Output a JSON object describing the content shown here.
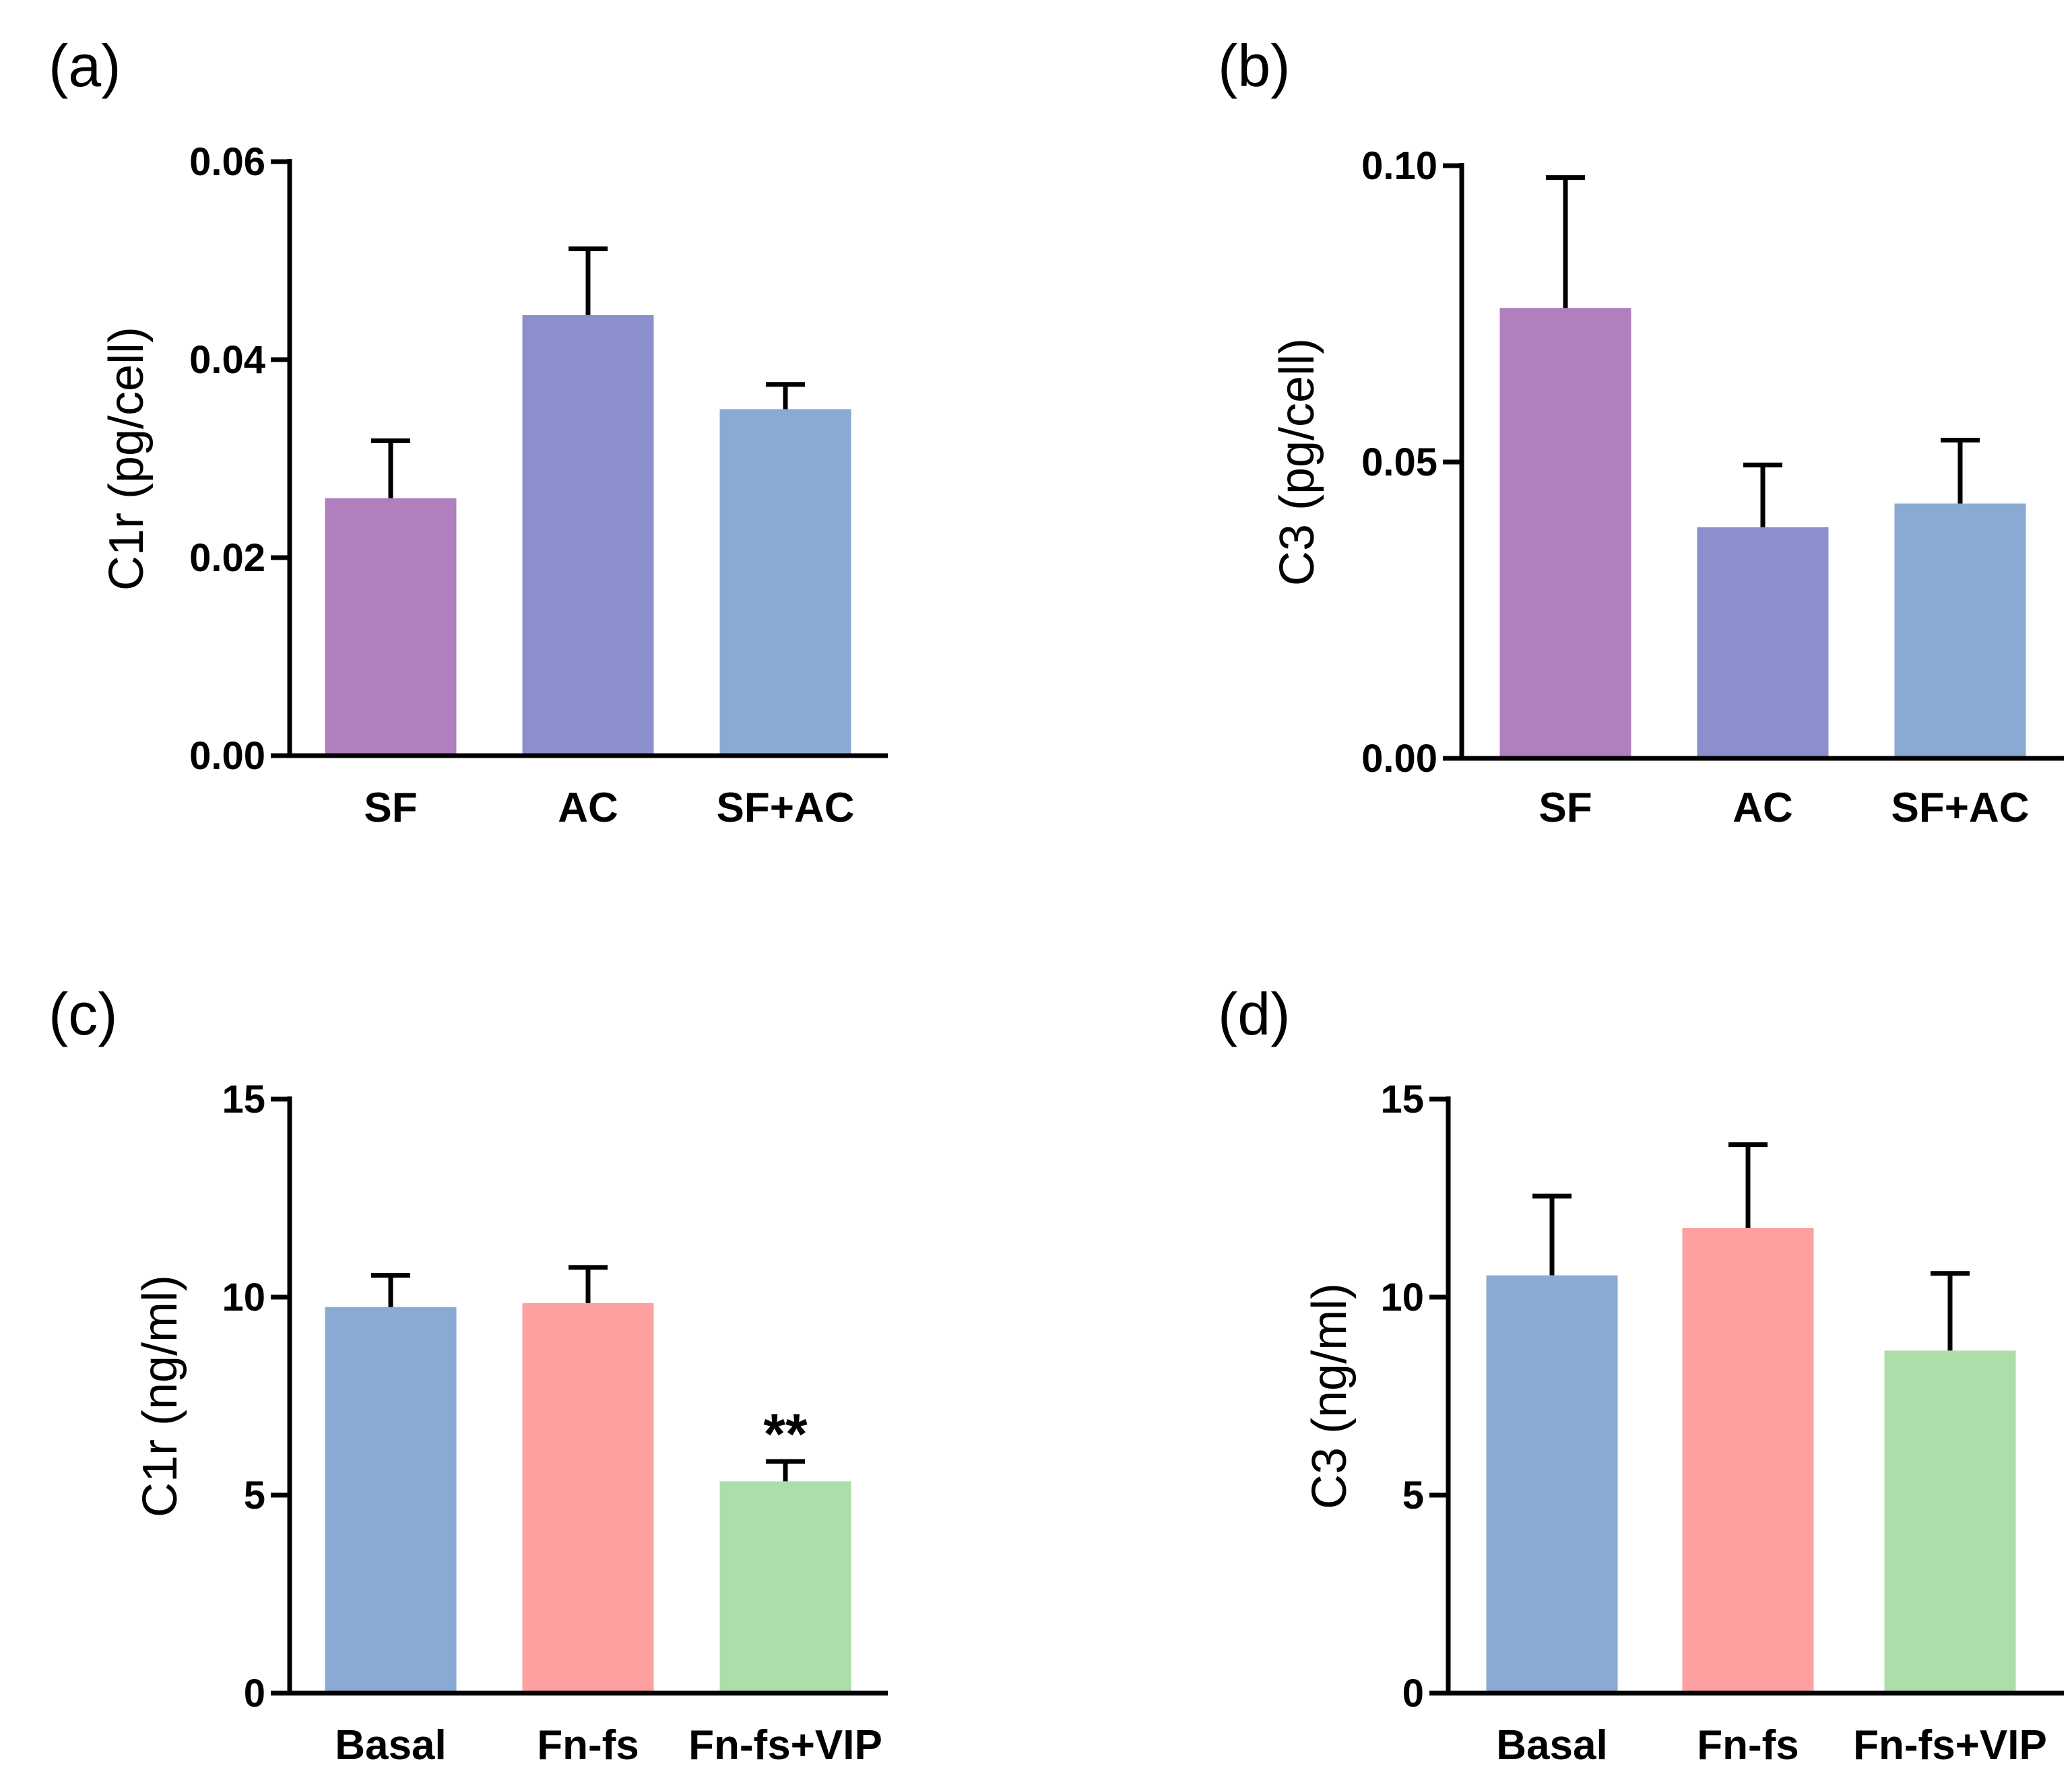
{
  "chart_data": [
    {
      "panel": "(a)",
      "type": "bar",
      "categories": [
        "SF",
        "AC",
        "SF+AC"
      ],
      "values": [
        0.026,
        0.0445,
        0.035
      ],
      "errors": [
        0.0058,
        0.0067,
        0.0025
      ],
      "colors": [
        "#b07fbe",
        "#8b90cc",
        "#8aaad3"
      ],
      "ylabel": "C1r (pg/cell)",
      "ylim": [
        0,
        0.06
      ],
      "yticks": [
        0,
        0.02,
        0.04,
        0.06
      ],
      "ytick_labels": [
        "0.00",
        "0.02",
        "0.04",
        "0.06"
      ],
      "annotations": []
    },
    {
      "panel": "(b)",
      "type": "bar",
      "categories": [
        "SF",
        "AC",
        "SF+AC"
      ],
      "values": [
        0.076,
        0.039,
        0.043
      ],
      "errors": [
        0.022,
        0.0105,
        0.0107
      ],
      "colors": [
        "#b07fbe",
        "#8b90cc",
        "#8aaad3"
      ],
      "ylabel": "C3 (pg/cell)",
      "ylim": [
        0,
        0.1
      ],
      "yticks": [
        0,
        0.05,
        0.1
      ],
      "ytick_labels": [
        "0.00",
        "0.05",
        "0.10"
      ],
      "annotations": []
    },
    {
      "panel": "(c)",
      "type": "bar",
      "categories": [
        "Basal",
        "Fn-fs",
        "Fn-fs+VIP"
      ],
      "values": [
        9.75,
        9.85,
        5.35
      ],
      "errors": [
        0.8,
        0.9,
        0.5
      ],
      "colors": [
        "#8aaad3",
        "#fca0a0",
        "#acdeaa"
      ],
      "ylabel": "C1r (ng/ml)",
      "ylim": [
        0,
        15
      ],
      "yticks": [
        0,
        5,
        10,
        15
      ],
      "ytick_labels": [
        "0",
        "5",
        "10",
        "15"
      ],
      "annotations": [
        {
          "category": "Fn-fs+VIP",
          "text": "**"
        }
      ]
    },
    {
      "panel": "(d)",
      "type": "bar",
      "categories": [
        "Basal",
        "Fn-fs",
        "Fn-fs+VIP"
      ],
      "values": [
        10.55,
        11.75,
        8.65
      ],
      "errors": [
        2.0,
        2.1,
        1.95
      ],
      "colors": [
        "#8aaad3",
        "#fca0a0",
        "#acdeaa"
      ],
      "ylabel": "C3 (ng/ml)",
      "ylim": [
        0,
        15
      ],
      "yticks": [
        0,
        5,
        10,
        15
      ],
      "ytick_labels": [
        "0",
        "5",
        "10",
        "15"
      ],
      "annotations": []
    }
  ]
}
